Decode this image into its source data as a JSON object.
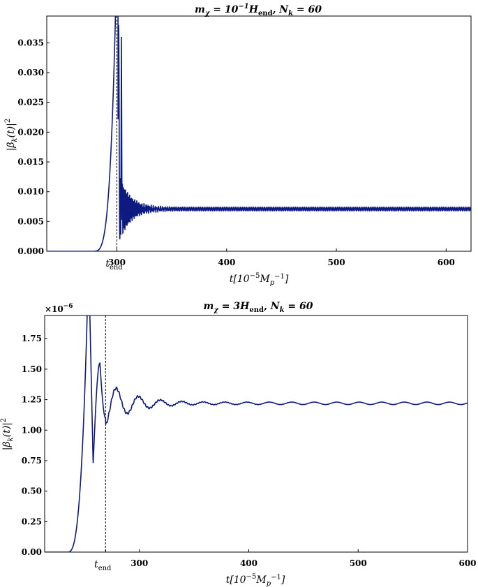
{
  "chart_data": [
    {
      "type": "line",
      "title": "m_χ = 10^{-1} H_end ,   N_k = 60",
      "xlabel": "t[10^{-5} M_p^{-1}]",
      "ylabel": "|β_k(t)|^2",
      "xlim": [
        225,
        600
      ],
      "ylim": [
        0,
        0.0395
      ],
      "x_ticks": [
        {
          "value": 287,
          "label": "300"
        },
        {
          "value": 384,
          "label": "400"
        },
        {
          "value": 481,
          "label": "500"
        },
        {
          "value": 578,
          "label": "600"
        }
      ],
      "x_tick_labels": [
        "300",
        "400",
        "500",
        "600"
      ],
      "y_ticks": [
        0.0,
        0.005,
        0.01,
        0.015,
        0.02,
        0.025,
        0.03,
        0.035
      ],
      "y_tick_labels": [
        "0.000",
        "0.005",
        "0.010",
        "0.015",
        "0.020",
        "0.025",
        "0.030",
        "0.035"
      ],
      "t_end_label": "t_end",
      "series": [
        {
          "color": "#0d1a80",
          "rise_start": 265,
          "t_end": 287,
          "peak_x": 288,
          "late_spike_x": 291,
          "late_spike_y": 0.036,
          "asymptote": 0.0071,
          "osc_amp0": 0.006,
          "osc_decay": 10,
          "osc_freq": 1.1,
          "residual_amp": 0.0003
        }
      ],
      "grid": false
    },
    {
      "type": "line",
      "title": "m_χ = 3H_end ,   N_k = 60",
      "xlabel": "t[10^{-5} M_p^{-1}]",
      "ylabel": "|β_k(t)|^2",
      "y_multiplier": "×10^{-6}",
      "xlim": [
        225,
        600
      ],
      "ylim": [
        0,
        1.94
      ],
      "x_ticks": [
        {
          "value": 309,
          "label": "300"
        },
        {
          "value": 406,
          "label": "400"
        },
        {
          "value": 503,
          "label": "500"
        },
        {
          "value": 600,
          "label": "600"
        }
      ],
      "x_tick_labels": [
        "300",
        "400",
        "500",
        "600"
      ],
      "y_ticks": [
        0.0,
        0.25,
        0.5,
        0.75,
        1.0,
        1.25,
        1.5,
        1.75
      ],
      "y_tick_labels": [
        "0.00",
        "0.25",
        "0.50",
        "0.75",
        "1.00",
        "1.25",
        "1.50",
        "1.75"
      ],
      "t_end_label": "t_end",
      "series": [
        {
          "color": "#0d1a80",
          "rise_start": 245,
          "t_end": 279,
          "asymptote": 1.22,
          "first_max_x": 274,
          "first_max_y": 1.55,
          "first_min_x": 268,
          "first_min_y": 0.72,
          "osc_amp0": 0.18,
          "osc_decay": 25,
          "osc_period": 20,
          "residual_amp": 0.01
        }
      ],
      "grid": false
    }
  ]
}
